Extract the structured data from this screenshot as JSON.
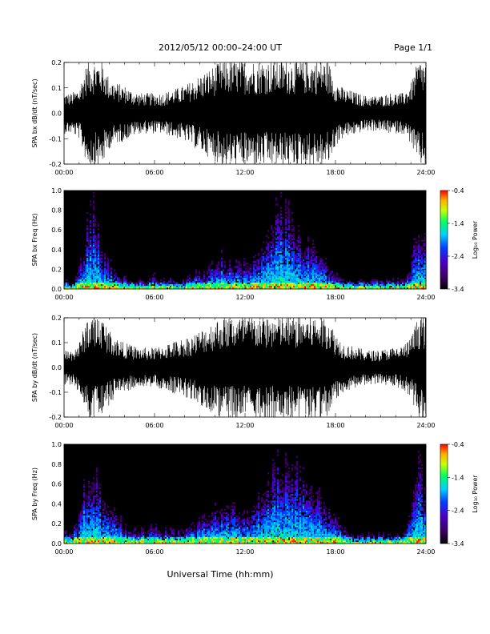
{
  "header": {
    "title": "2012/05/12   00:00–24:00 UT",
    "page": "Page 1/1"
  },
  "xlabel": "Universal Time (hh:mm)",
  "colors": {
    "trace": "#000000",
    "background": "#ffffff"
  },
  "chart_data": [
    {
      "type": "line",
      "panel": "bx-timeseries",
      "ylabel": "SPA bx dB/dt (nT/sec)",
      "xlim": [
        0,
        24
      ],
      "ylim": [
        -0.2,
        0.2
      ],
      "xticks": [
        "00:00",
        "06:00",
        "12:00",
        "18:00",
        "24:00"
      ],
      "yticks": [
        "-0.2",
        "-0.1",
        "0.0",
        "0.1",
        "0.2"
      ],
      "x_hours": [
        0,
        0.5,
        1.0,
        1.4,
        1.6,
        2.0,
        2.5,
        3.0,
        3.5,
        4.0,
        4.5,
        5.0,
        5.5,
        6.0,
        6.5,
        7.0,
        7.5,
        8.0,
        8.5,
        9.0,
        9.5,
        10.0,
        10.5,
        11.0,
        11.5,
        12.0,
        12.5,
        13.0,
        13.5,
        14.0,
        14.5,
        15.0,
        15.5,
        16.0,
        16.5,
        17.0,
        17.5,
        18.0,
        18.5,
        19.0,
        19.5,
        20.0,
        20.5,
        21.0,
        21.5,
        22.0,
        22.5,
        23.0,
        23.5,
        24.0
      ],
      "amplitude": [
        0.08,
        0.08,
        0.1,
        0.18,
        0.21,
        0.21,
        0.21,
        0.14,
        0.12,
        0.11,
        0.09,
        0.08,
        0.08,
        0.08,
        0.08,
        0.09,
        0.1,
        0.11,
        0.13,
        0.15,
        0.17,
        0.19,
        0.21,
        0.21,
        0.21,
        0.21,
        0.21,
        0.21,
        0.21,
        0.21,
        0.21,
        0.21,
        0.21,
        0.21,
        0.21,
        0.21,
        0.21,
        0.13,
        0.1,
        0.09,
        0.08,
        0.07,
        0.07,
        0.07,
        0.08,
        0.08,
        0.08,
        0.12,
        0.21,
        0.21
      ]
    },
    {
      "type": "heatmap",
      "panel": "bx-spectrogram",
      "ylabel": "SPA bx Freq (Hz)",
      "colorbar_label": "Log₁₀ Power",
      "colorbar_ticks": [
        "-0.4",
        "-1.4",
        "-2.4",
        "-3.4"
      ],
      "zlim": [
        -3.4,
        -0.4
      ],
      "xlim": [
        0,
        24
      ],
      "ylim": [
        0,
        1.0
      ],
      "xticks": [
        "00:00",
        "06:00",
        "12:00",
        "18:00",
        "24:00"
      ],
      "yticks": [
        "0.0",
        "0.2",
        "0.4",
        "0.6",
        "0.8",
        "1.0"
      ],
      "x_hours": [
        0,
        0.5,
        1.0,
        1.4,
        1.6,
        2.0,
        2.5,
        3.0,
        3.5,
        4.0,
        4.5,
        5.0,
        5.5,
        6.0,
        6.5,
        7.0,
        7.5,
        8.0,
        8.5,
        9.0,
        9.5,
        10.0,
        10.5,
        11.0,
        11.5,
        12.0,
        12.5,
        13.0,
        13.5,
        14.0,
        14.5,
        15.0,
        15.5,
        16.0,
        16.5,
        17.0,
        17.5,
        18.0,
        18.5,
        19.0,
        19.5,
        20.0,
        20.5,
        21.0,
        21.5,
        22.0,
        22.5,
        23.0,
        23.5,
        24.0
      ],
      "activity_top_hz": [
        0.1,
        0.05,
        0.2,
        0.6,
        0.9,
        1.0,
        0.4,
        0.3,
        0.2,
        0.15,
        0.1,
        0.1,
        0.1,
        0.15,
        0.1,
        0.15,
        0.1,
        0.1,
        0.15,
        0.2,
        0.2,
        0.3,
        0.4,
        0.3,
        0.3,
        0.3,
        0.3,
        0.4,
        0.6,
        0.9,
        0.9,
        0.8,
        0.7,
        0.6,
        0.5,
        0.4,
        0.3,
        0.2,
        0.1,
        0.1,
        0.1,
        0.1,
        0.1,
        0.1,
        0.1,
        0.1,
        0.1,
        0.2,
        0.9,
        0.5
      ]
    },
    {
      "type": "line",
      "panel": "by-timeseries",
      "ylabel": "SPA by dB/dt (nT/sec)",
      "xlim": [
        0,
        24
      ],
      "ylim": [
        -0.2,
        0.2
      ],
      "xticks": [
        "00:00",
        "06:00",
        "12:00",
        "18:00",
        "24:00"
      ],
      "yticks": [
        "-0.2",
        "-0.1",
        "0.0",
        "0.1",
        "0.2"
      ],
      "x_hours": [
        0,
        0.5,
        1.0,
        1.4,
        1.6,
        2.0,
        2.5,
        3.0,
        3.5,
        4.0,
        4.5,
        5.0,
        5.5,
        6.0,
        6.5,
        7.0,
        7.5,
        8.0,
        8.5,
        9.0,
        9.5,
        10.0,
        10.5,
        11.0,
        11.5,
        12.0,
        12.5,
        13.0,
        13.5,
        14.0,
        14.5,
        15.0,
        15.5,
        16.0,
        16.5,
        17.0,
        17.5,
        18.0,
        18.5,
        19.0,
        19.5,
        20.0,
        20.5,
        21.0,
        21.5,
        22.0,
        22.5,
        23.0,
        23.5,
        24.0
      ],
      "amplitude": [
        0.07,
        0.07,
        0.1,
        0.18,
        0.21,
        0.21,
        0.21,
        0.15,
        0.12,
        0.1,
        0.09,
        0.08,
        0.08,
        0.08,
        0.09,
        0.1,
        0.11,
        0.12,
        0.13,
        0.15,
        0.17,
        0.19,
        0.21,
        0.21,
        0.21,
        0.21,
        0.21,
        0.21,
        0.21,
        0.21,
        0.21,
        0.21,
        0.21,
        0.21,
        0.21,
        0.21,
        0.21,
        0.14,
        0.1,
        0.09,
        0.08,
        0.07,
        0.07,
        0.07,
        0.08,
        0.08,
        0.09,
        0.12,
        0.21,
        0.21
      ]
    },
    {
      "type": "heatmap",
      "panel": "by-spectrogram",
      "ylabel": "SPA by Freq (Hz)",
      "colorbar_label": "Log₁₀ Power",
      "colorbar_ticks": [
        "-0.4",
        "-1.4",
        "-2.4",
        "-3.4"
      ],
      "zlim": [
        -3.4,
        -0.4
      ],
      "xlim": [
        0,
        24
      ],
      "ylim": [
        0,
        1.0
      ],
      "xticks": [
        "00:00",
        "06:00",
        "12:00",
        "18:00",
        "24:00"
      ],
      "yticks": [
        "0.0",
        "0.2",
        "0.4",
        "0.6",
        "0.8",
        "1.0"
      ],
      "x_hours": [
        0,
        0.5,
        1.0,
        1.4,
        1.6,
        2.0,
        2.5,
        3.0,
        3.5,
        4.0,
        4.5,
        5.0,
        5.5,
        6.0,
        6.5,
        7.0,
        7.5,
        8.0,
        8.5,
        9.0,
        9.5,
        10.0,
        10.5,
        11.0,
        11.5,
        12.0,
        12.5,
        13.0,
        13.5,
        14.0,
        14.5,
        15.0,
        15.5,
        16.0,
        16.5,
        17.0,
        17.5,
        18.0,
        18.5,
        19.0,
        19.5,
        20.0,
        20.5,
        21.0,
        21.5,
        22.0,
        22.5,
        23.0,
        23.5,
        24.0
      ],
      "activity_top_hz": [
        0.15,
        0.1,
        0.3,
        0.7,
        0.9,
        1.0,
        0.5,
        0.4,
        0.3,
        0.2,
        0.15,
        0.15,
        0.15,
        0.2,
        0.15,
        0.15,
        0.15,
        0.15,
        0.2,
        0.25,
        0.3,
        0.4,
        0.5,
        0.4,
        0.4,
        0.4,
        0.4,
        0.5,
        0.7,
        0.9,
        0.9,
        0.9,
        0.8,
        0.7,
        0.6,
        0.5,
        0.4,
        0.3,
        0.2,
        0.1,
        0.1,
        0.1,
        0.1,
        0.1,
        0.1,
        0.1,
        0.15,
        0.3,
        0.9,
        0.6
      ]
    }
  ]
}
